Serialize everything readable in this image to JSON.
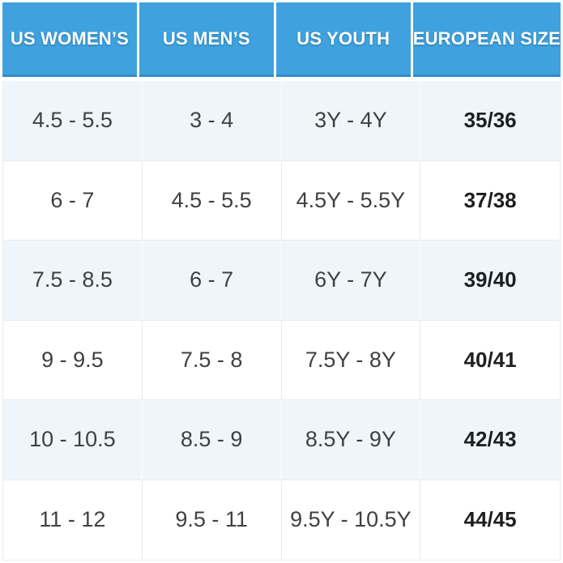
{
  "chart_data": {
    "type": "table",
    "columns": [
      "US WOMEN’S",
      "US MEN’S",
      "US YOUTH",
      "EUROPEAN SIZE"
    ],
    "rows": [
      [
        "4.5 - 5.5",
        "3 - 4",
        "3Y - 4Y",
        "35/36"
      ],
      [
        "6 - 7",
        "4.5 - 5.5",
        "4.5Y - 5.5Y",
        "37/38"
      ],
      [
        "7.5 - 8.5",
        "6 - 7",
        "6Y - 7Y",
        "39/40"
      ],
      [
        "9 - 9.5",
        "7.5 - 8",
        "7.5Y - 8Y",
        "40/41"
      ],
      [
        "10 - 10.5",
        "8.5 - 9",
        "8.5Y - 9Y",
        "42/43"
      ],
      [
        "11 - 12",
        "9.5 - 11",
        "9.5Y - 10.5Y",
        "44/45"
      ]
    ],
    "layout": {
      "grid": "on",
      "striped_rows": "odd rows tinted light blue",
      "bold_column": "EUROPEAN SIZE"
    }
  },
  "colors": {
    "header_bg": "#3FA2DE",
    "header_edge": "#338CC6",
    "header_text": "#FFFFFF",
    "row_tint": "#EFF6FB",
    "row_white": "#FFFFFF",
    "grid_line": "#E9EBED",
    "cell_text": "#3E4144",
    "euro_text": "#1D1F21",
    "page_bg": "#FFFFFF"
  }
}
